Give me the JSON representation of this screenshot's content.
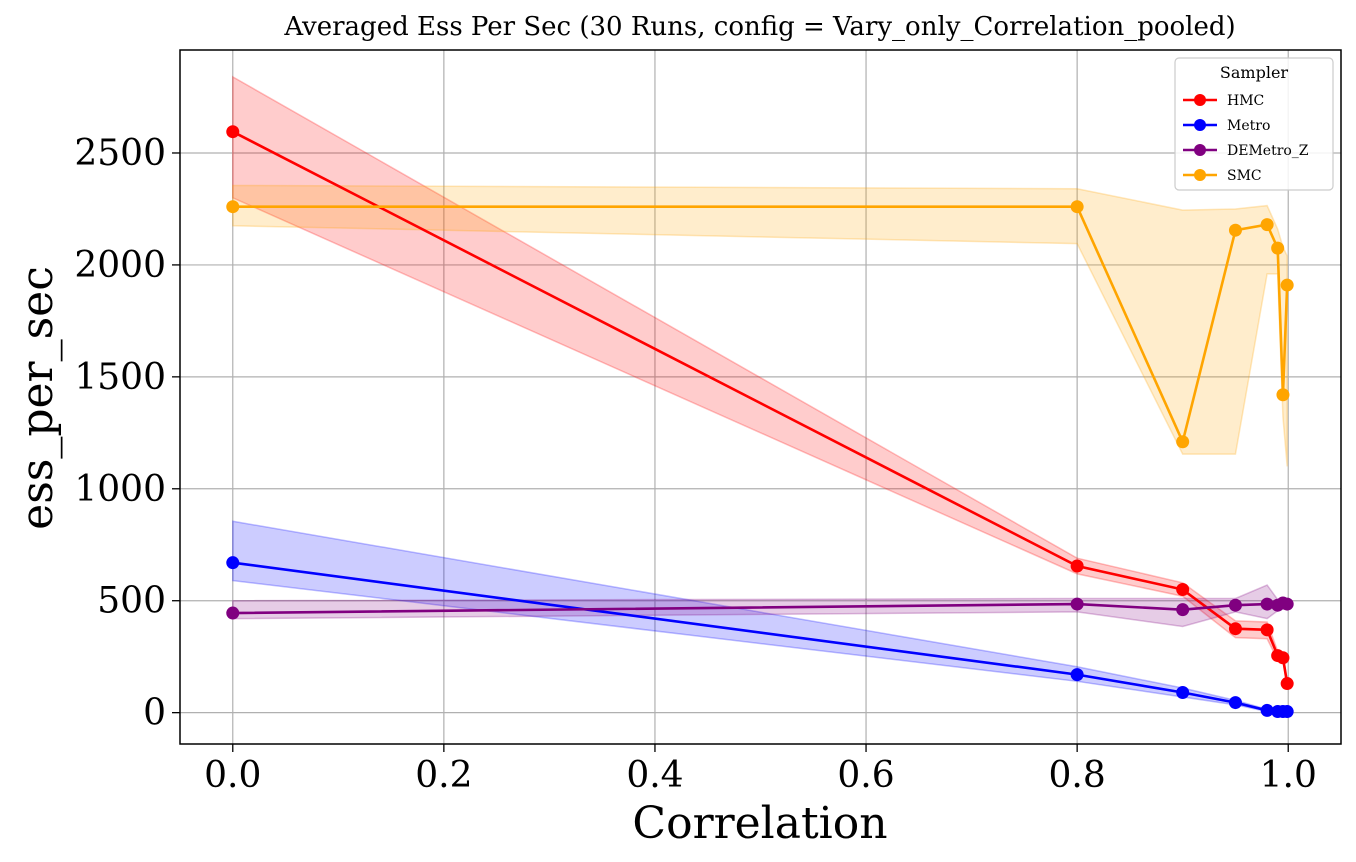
{
  "chart_data": {
    "type": "line",
    "title": "Averaged Ess Per Sec (30 Runs, config = Vary_only_Correlation_pooled)",
    "xlabel": "Correlation",
    "ylabel": "ess_per_sec",
    "xlim": [
      -0.05,
      1.05
    ],
    "ylim": [
      -140,
      2960
    ],
    "xticks": [
      0.0,
      0.2,
      0.4,
      0.6,
      0.8,
      1.0
    ],
    "xtick_labels": [
      "0.0",
      "0.2",
      "0.4",
      "0.6",
      "0.8",
      "1.0"
    ],
    "yticks": [
      0,
      500,
      1000,
      1500,
      2000,
      2500
    ],
    "ytick_labels": [
      "0",
      "500",
      "1000",
      "1500",
      "2000",
      "2500"
    ],
    "grid": true,
    "legend": {
      "title": "Sampler",
      "placement": "top-right"
    },
    "series": [
      {
        "name": "HMC",
        "color": "#ff0000",
        "band_color": "#ff0000",
        "x": [
          0.0,
          0.8,
          0.9,
          0.95,
          0.98,
          0.99,
          0.995,
          0.999
        ],
        "y": [
          2595,
          655,
          550,
          375,
          370,
          255,
          245,
          130
        ],
        "lower": [
          2300,
          620,
          520,
          335,
          330,
          235,
          230,
          115
        ],
        "upper": [
          2840,
          690,
          580,
          410,
          405,
          275,
          260,
          145
        ]
      },
      {
        "name": "Metro",
        "color": "#0000ff",
        "band_color": "#0000ff",
        "x": [
          0.0,
          0.8,
          0.9,
          0.95,
          0.98,
          0.99,
          0.995,
          0.999
        ],
        "y": [
          670,
          170,
          90,
          45,
          10,
          5,
          5,
          5
        ],
        "lower": [
          590,
          140,
          70,
          35,
          5,
          2,
          2,
          2
        ],
        "upper": [
          855,
          205,
          110,
          55,
          15,
          10,
          8,
          8
        ]
      },
      {
        "name": "DEMetro_Z",
        "color": "#800080",
        "band_color": "#800080",
        "x": [
          0.0,
          0.8,
          0.9,
          0.95,
          0.98,
          0.99,
          0.995,
          0.999
        ],
        "y": [
          445,
          485,
          460,
          480,
          485,
          480,
          490,
          485
        ],
        "lower": [
          420,
          450,
          385,
          450,
          420,
          455,
          470,
          465
        ],
        "upper": [
          500,
          510,
          510,
          510,
          570,
          505,
          510,
          505
        ]
      },
      {
        "name": "SMC",
        "color": "#ffa500",
        "band_color": "#ffa500",
        "x": [
          0.0,
          0.8,
          0.9,
          0.95,
          0.98,
          0.99,
          0.995,
          0.999
        ],
        "y": [
          2260,
          2260,
          1210,
          2155,
          2180,
          2075,
          1420,
          1910
        ],
        "lower": [
          2175,
          2095,
          1155,
          1155,
          1960,
          1960,
          1320,
          1100
        ],
        "upper": [
          2355,
          2340,
          2245,
          2250,
          2265,
          2160,
          2080,
          2040
        ]
      }
    ]
  }
}
